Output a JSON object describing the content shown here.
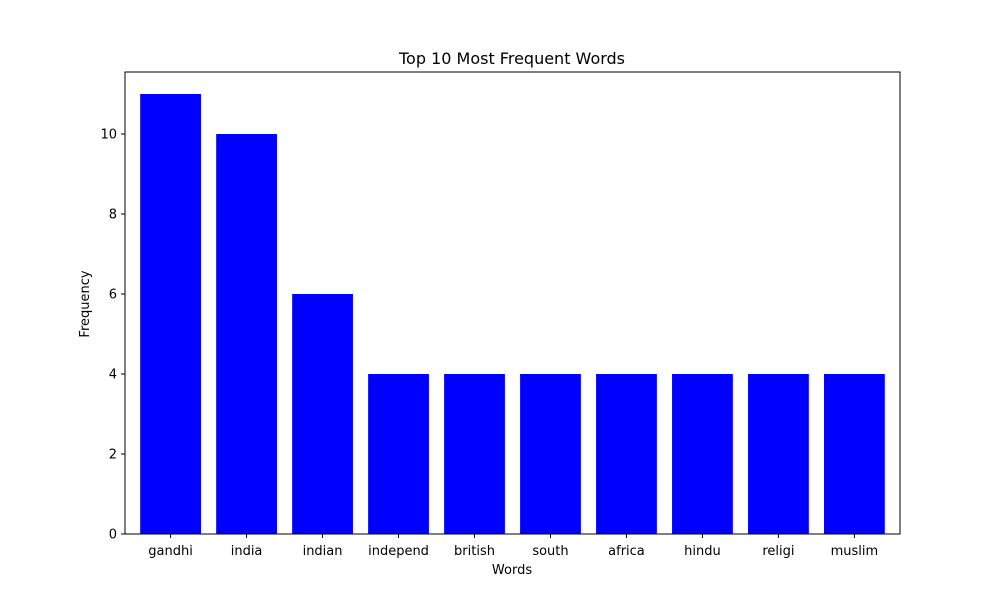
{
  "chart_data": {
    "type": "bar",
    "title": "Top 10 Most Frequent Words",
    "xlabel": "Words",
    "ylabel": "Frequency",
    "categories": [
      "gandhi",
      "india",
      "indian",
      "independ",
      "british",
      "south",
      "africa",
      "hindu",
      "religi",
      "muslim"
    ],
    "values": [
      11,
      10,
      6,
      4,
      4,
      4,
      4,
      4,
      4,
      4
    ],
    "ylim": [
      0,
      11.55
    ],
    "yticks": [
      0,
      2,
      4,
      6,
      8,
      10
    ],
    "bar_color": "#0000ff",
    "grid": false,
    "legend": false
  }
}
